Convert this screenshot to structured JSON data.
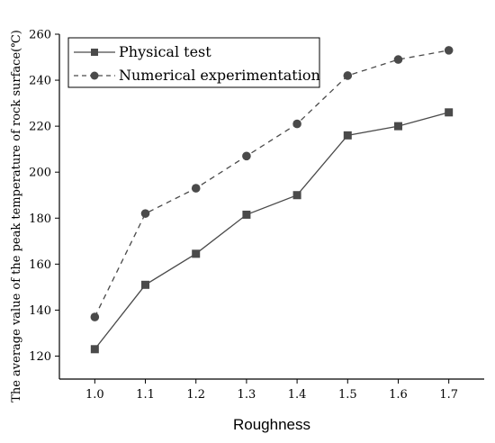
{
  "chart_data": {
    "type": "line",
    "title": "",
    "xlabel": "Roughness",
    "ylabel": "The average value of the peak temperature of rock surface(℃)",
    "x": [
      1.0,
      1.1,
      1.2,
      1.3,
      1.4,
      1.5,
      1.6,
      1.7
    ],
    "x_tick_labels": [
      "1.0",
      "1.1",
      "1.2",
      "1.3",
      "1.4",
      "1.5",
      "1.6",
      "1.7"
    ],
    "xlim": [
      0.93,
      1.77
    ],
    "ylim": [
      110,
      260
    ],
    "y_ticks": [
      120,
      140,
      160,
      180,
      200,
      220,
      240,
      260
    ],
    "y_tick_labels": [
      "120",
      "140",
      "160",
      "180",
      "200",
      "220",
      "240",
      "260"
    ],
    "grid": false,
    "legend_position": "top-left",
    "series": [
      {
        "name": "Physical test",
        "values": [
          123,
          151,
          164.5,
          181.5,
          190,
          216,
          220,
          226
        ],
        "marker": "square",
        "line_style": "solid",
        "color": "#4a4a4a"
      },
      {
        "name": "Numerical experimentation",
        "values": [
          137,
          182,
          193,
          207,
          221,
          242,
          249,
          253
        ],
        "marker": "circle",
        "line_style": "dashed",
        "color": "#4a4a4a"
      }
    ]
  }
}
